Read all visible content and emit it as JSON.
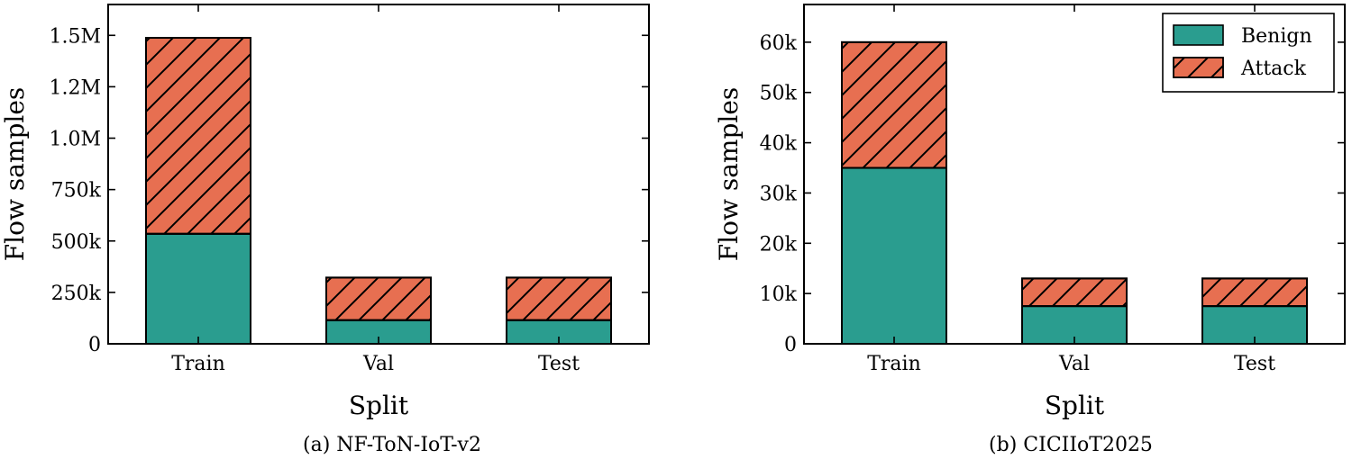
{
  "colors": {
    "benign": "#2a9d8f",
    "attack": "#e76f51",
    "edge": "#000000"
  },
  "legend": {
    "items": [
      {
        "label": "Benign",
        "fill": "benign",
        "hatch": false
      },
      {
        "label": "Attack",
        "fill": "attack",
        "hatch": true
      }
    ],
    "placement": "top-right of second panel"
  },
  "chart_data": [
    {
      "type": "bar",
      "stacked": true,
      "caption": "(a) NF-ToN-IoT-v2",
      "xlabel": "Split",
      "ylabel": "Flow samples",
      "categories": [
        "Train",
        "Val",
        "Test"
      ],
      "series": [
        {
          "name": "Benign",
          "values": [
            535000,
            115000,
            115000
          ]
        },
        {
          "name": "Attack",
          "values": [
            953000,
            207000,
            207000
          ]
        }
      ],
      "ylim": [
        0,
        1650000
      ],
      "yticks": [
        0,
        250000,
        500000,
        750000,
        1000000,
        1250000,
        1500000
      ],
      "ytick_labels": [
        "0",
        "250k",
        "500k",
        "750k",
        "1.0M",
        "1.2M",
        "1.5M"
      ],
      "grid": false
    },
    {
      "type": "bar",
      "stacked": true,
      "caption": "(b) CICIIoT2025",
      "xlabel": "Split",
      "ylabel": "Flow samples",
      "categories": [
        "Train",
        "Val",
        "Test"
      ],
      "series": [
        {
          "name": "Benign",
          "values": [
            35000,
            7500,
            7500
          ]
        },
        {
          "name": "Attack",
          "values": [
            25000,
            5500,
            5500
          ]
        }
      ],
      "ylim": [
        0,
        67500
      ],
      "yticks": [
        0,
        10000,
        20000,
        30000,
        40000,
        50000,
        60000
      ],
      "ytick_labels": [
        "0",
        "10k",
        "20k",
        "30k",
        "40k",
        "50k",
        "60k"
      ],
      "grid": false,
      "legend": true
    }
  ]
}
